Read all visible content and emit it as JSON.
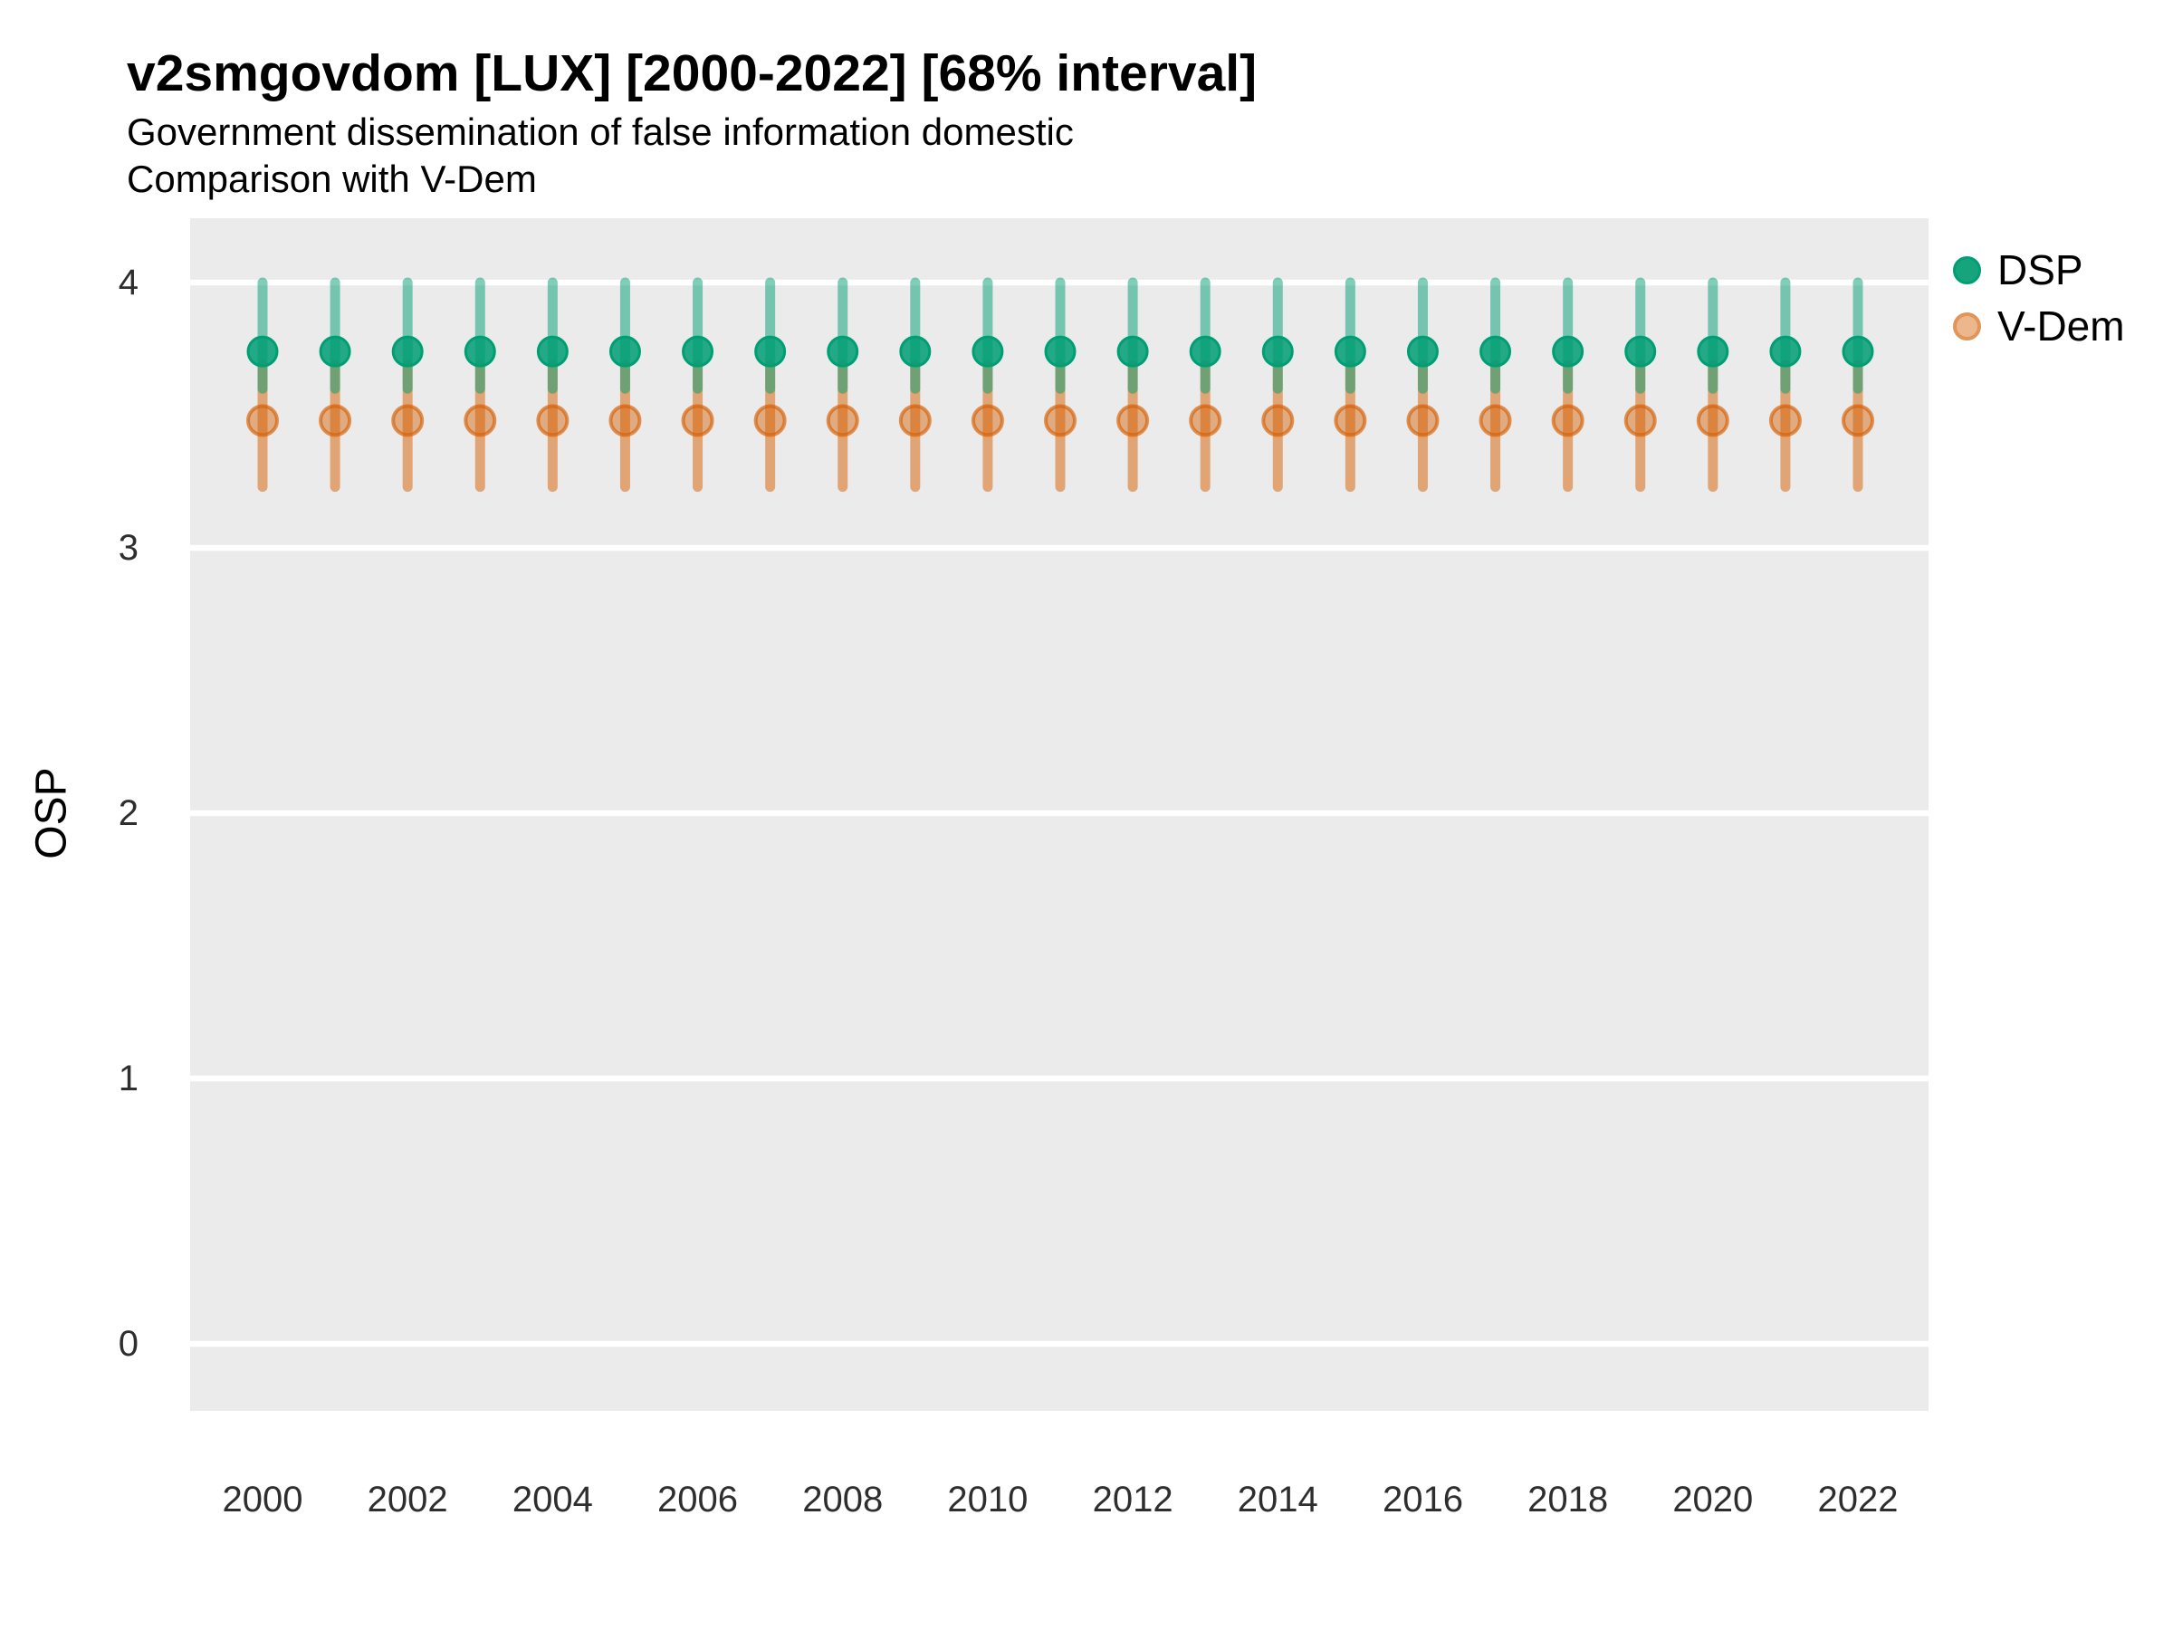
{
  "title": "v2smgovdom [LUX] [2000-2022] [68% interval]",
  "subtitle_line1": "Government dissemination of false information domestic",
  "subtitle_line2": "Comparison with V-Dem",
  "y_axis_label": "OSP",
  "legend": {
    "position": "right-top",
    "items": [
      {
        "label": "DSP",
        "color": "#009E73"
      },
      {
        "label": "V-Dem",
        "color": "#D55E00"
      }
    ]
  },
  "colors": {
    "dsp": "#009E73",
    "vdem": "#D55E00",
    "panel_bg": "#EBEBEB",
    "gridline": "#FFFFFF",
    "tick_text": "#2e2e2e"
  },
  "chart_data": {
    "type": "pointrange",
    "title": "v2smgovdom [LUX] [2000-2022] [68% interval]",
    "subtitle": "Government dissemination of false information domestic — Comparison with V-Dem",
    "interval": "68%",
    "xlabel": "",
    "ylabel": "OSP",
    "ylim": [
      -0.25,
      4.25
    ],
    "y_ticks": [
      0,
      1,
      2,
      3,
      4
    ],
    "xlim": [
      1999,
      2023
    ],
    "grid": "major-horizontal-only",
    "legend_position": "right",
    "x": [
      2000,
      2001,
      2002,
      2003,
      2004,
      2005,
      2006,
      2007,
      2008,
      2009,
      2010,
      2011,
      2012,
      2013,
      2014,
      2015,
      2016,
      2017,
      2018,
      2019,
      2020,
      2021,
      2022
    ],
    "x_tick_labels": [
      "2000",
      "2002",
      "2004",
      "2006",
      "2008",
      "2010",
      "2012",
      "2014",
      "2016",
      "2018",
      "2020",
      "2022"
    ],
    "series": [
      {
        "name": "DSP",
        "color": "#009E73",
        "values": [
          3.74,
          3.74,
          3.74,
          3.74,
          3.74,
          3.74,
          3.74,
          3.74,
          3.74,
          3.74,
          3.74,
          3.74,
          3.74,
          3.74,
          3.74,
          3.74,
          3.74,
          3.74,
          3.74,
          3.74,
          3.74,
          3.74,
          3.74
        ],
        "lower": [
          3.6,
          3.6,
          3.6,
          3.6,
          3.6,
          3.6,
          3.6,
          3.6,
          3.6,
          3.6,
          3.6,
          3.6,
          3.6,
          3.6,
          3.6,
          3.6,
          3.6,
          3.6,
          3.6,
          3.6,
          3.6,
          3.6,
          3.6
        ],
        "upper": [
          4.0,
          4.0,
          4.0,
          4.0,
          4.0,
          4.0,
          4.0,
          4.0,
          4.0,
          4.0,
          4.0,
          4.0,
          4.0,
          4.0,
          4.0,
          4.0,
          4.0,
          4.0,
          4.0,
          4.0,
          4.0,
          4.0,
          4.0
        ]
      },
      {
        "name": "V-Dem",
        "color": "#D55E00",
        "values": [
          3.48,
          3.48,
          3.48,
          3.48,
          3.48,
          3.48,
          3.48,
          3.48,
          3.48,
          3.48,
          3.48,
          3.48,
          3.48,
          3.48,
          3.48,
          3.48,
          3.48,
          3.48,
          3.48,
          3.48,
          3.48,
          3.48,
          3.48
        ],
        "lower": [
          3.23,
          3.23,
          3.23,
          3.23,
          3.23,
          3.23,
          3.23,
          3.23,
          3.23,
          3.23,
          3.23,
          3.23,
          3.23,
          3.23,
          3.23,
          3.23,
          3.23,
          3.23,
          3.23,
          3.23,
          3.23,
          3.23,
          3.23
        ],
        "upper": [
          3.69,
          3.69,
          3.69,
          3.69,
          3.69,
          3.69,
          3.69,
          3.69,
          3.69,
          3.69,
          3.69,
          3.69,
          3.69,
          3.69,
          3.69,
          3.69,
          3.69,
          3.69,
          3.69,
          3.69,
          3.69,
          3.69,
          3.69
        ]
      }
    ]
  }
}
